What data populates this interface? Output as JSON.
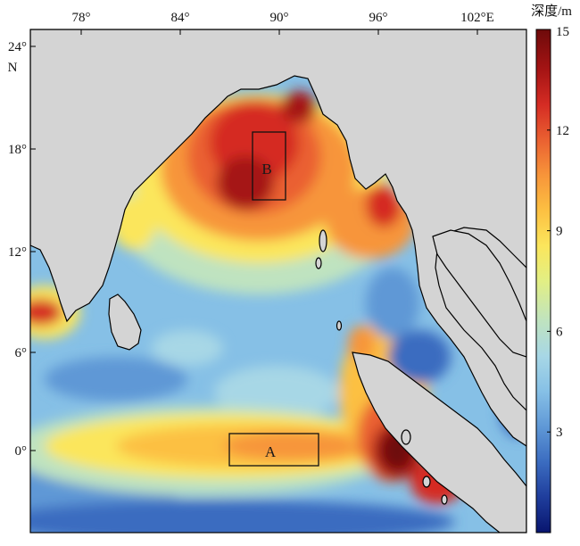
{
  "map": {
    "colorbar": {
      "title": "深度/m",
      "min": 0,
      "max": 15,
      "ticks": [
        "3",
        "6",
        "9",
        "12",
        "15"
      ],
      "tick_values": [
        3,
        6,
        9,
        12,
        15
      ],
      "colors": [
        "#08156e",
        "#1f3d9c",
        "#3b6cc0",
        "#5f98d6",
        "#86c0e6",
        "#a7d7e6",
        "#bfe3c0",
        "#e2ef84",
        "#fbe65c",
        "#fcc042",
        "#f7953a",
        "#ea6131",
        "#d52c24",
        "#a51414",
        "#6e0a0a"
      ]
    },
    "x_ticks": [
      "78°",
      "84°",
      "90°",
      "96°",
      "102°E"
    ],
    "y_ticks": [
      "24°",
      "18°",
      "12°",
      "6°",
      "0°"
    ],
    "y_axis_unit": "N",
    "regions": [
      {
        "label": "A"
      },
      {
        "label": "B"
      }
    ],
    "colors": {
      "land": "#d4d4d4",
      "coast": "#000000",
      "frame": "#000000"
    }
  }
}
